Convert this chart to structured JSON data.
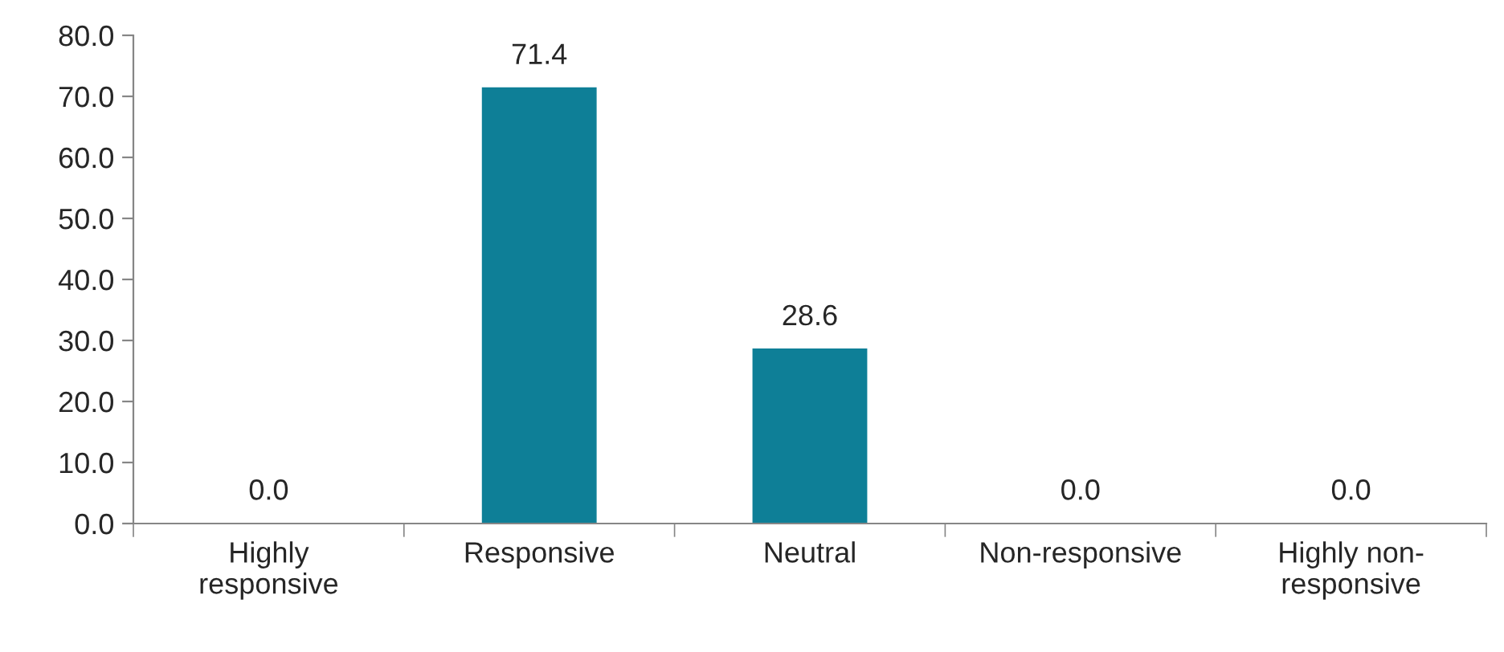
{
  "chart_data": {
    "type": "bar",
    "categories": [
      "Highly\nresponsive",
      "Responsive",
      "Neutral",
      "Non-responsive",
      "Highly non-\nresponsive"
    ],
    "values": [
      0.0,
      71.4,
      28.6,
      0.0,
      0.0
    ],
    "value_labels": [
      "0.0",
      "71.4",
      "28.6",
      "0.0",
      "0.0"
    ],
    "color": "#0e7f97",
    "ylim": [
      0,
      80
    ],
    "yticks": [
      {
        "value": 0,
        "label": "0.0"
      },
      {
        "value": 10,
        "label": "10.0"
      },
      {
        "value": 20,
        "label": "20.0"
      },
      {
        "value": 30,
        "label": "30.0"
      },
      {
        "value": 40,
        "label": "40.0"
      },
      {
        "value": 50,
        "label": "50.0"
      },
      {
        "value": 60,
        "label": "60.0"
      },
      {
        "value": 70,
        "label": "70.0"
      },
      {
        "value": 80,
        "label": "80.0"
      }
    ],
    "grid": false,
    "legend": false
  }
}
